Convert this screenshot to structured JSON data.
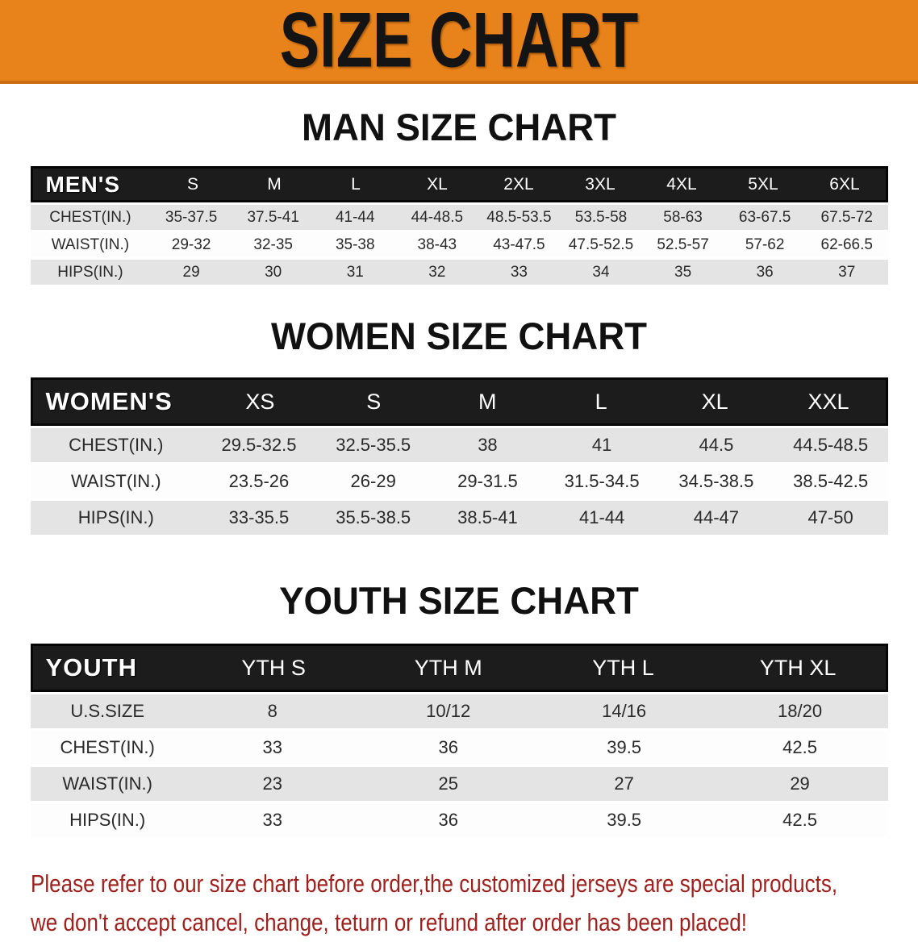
{
  "banner": {
    "title": "SIZE CHART",
    "bg_color": "#e8821a",
    "text_color": "#141414"
  },
  "sections": [
    {
      "id": "men",
      "title": "MAN SIZE CHART",
      "header_label": "MEN'S",
      "columns": [
        "S",
        "M",
        "L",
        "XL",
        "2XL",
        "3XL",
        "4XL",
        "5XL",
        "6XL"
      ],
      "rows": [
        {
          "label": "CHEST(IN.)",
          "values": [
            "35-37.5",
            "37.5-41",
            "41-44",
            "44-48.5",
            "48.5-53.5",
            "53.5-58",
            "58-63",
            "63-67.5",
            "67.5-72"
          ]
        },
        {
          "label": "WAIST(IN.)",
          "values": [
            "29-32",
            "32-35",
            "35-38",
            "38-43",
            "43-47.5",
            "47.5-52.5",
            "52.5-57",
            "57-62",
            "62-66.5"
          ]
        },
        {
          "label": "HIPS(IN.)",
          "values": [
            "29",
            "30",
            "31",
            "32",
            "33",
            "34",
            "35",
            "36",
            "37"
          ]
        }
      ]
    },
    {
      "id": "women",
      "title": "WOMEN SIZE CHART",
      "header_label": "WOMEN'S",
      "columns": [
        "XS",
        "S",
        "M",
        "L",
        "XL",
        "XXL"
      ],
      "rows": [
        {
          "label": "CHEST(IN.)",
          "values": [
            "29.5-32.5",
            "32.5-35.5",
            "38",
            "41",
            "44.5",
            "44.5-48.5"
          ]
        },
        {
          "label": "WAIST(IN.)",
          "values": [
            "23.5-26",
            "26-29",
            "29-31.5",
            "31.5-34.5",
            "34.5-38.5",
            "38.5-42.5"
          ]
        },
        {
          "label": "HIPS(IN.)",
          "values": [
            "33-35.5",
            "35.5-38.5",
            "38.5-41",
            "41-44",
            "44-47",
            "47-50"
          ]
        }
      ]
    },
    {
      "id": "youth",
      "title": "YOUTH SIZE CHART",
      "header_label": "YOUTH",
      "columns": [
        "YTH S",
        "YTH M",
        "YTH L",
        "YTH XL"
      ],
      "rows": [
        {
          "label": "U.S.SIZE",
          "values": [
            "8",
            "10/12",
            "14/16",
            "18/20"
          ]
        },
        {
          "label": "CHEST(IN.)",
          "values": [
            "33",
            "36",
            "39.5",
            "42.5"
          ]
        },
        {
          "label": "WAIST(IN.)",
          "values": [
            "23",
            "25",
            "27",
            "29"
          ]
        },
        {
          "label": "HIPS(IN.)",
          "values": [
            "33",
            "36",
            "39.5",
            "42.5"
          ]
        }
      ]
    }
  ],
  "disclaimer": {
    "line1": "Please refer to our size chart before order,the customized jerseys are special products,",
    "line2": "we don't accept cancel, change, teturn or refund after order has been placed!",
    "color": "#9e211d"
  }
}
